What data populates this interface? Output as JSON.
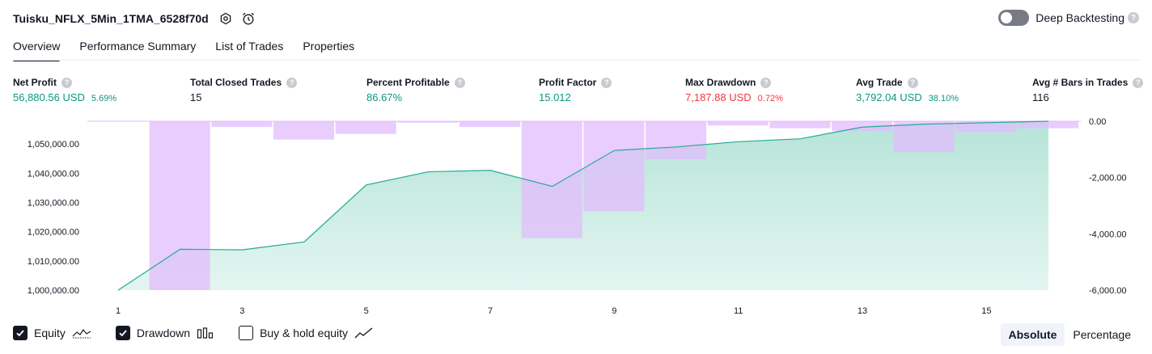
{
  "header": {
    "title": "Tuisku_NFLX_5Min_1TMA_6528f70d",
    "deep_backtesting_label": "Deep Backtesting"
  },
  "tabs": [
    {
      "label": "Overview"
    },
    {
      "label": "Performance Summary"
    },
    {
      "label": "List of Trades"
    },
    {
      "label": "Properties"
    }
  ],
  "metrics": [
    {
      "label": "Net Profit",
      "value": "56,880.56 USD",
      "pct": "5.69%"
    },
    {
      "label": "Total Closed Trades",
      "value": "15"
    },
    {
      "label": "Percent Profitable",
      "value": "86.67%"
    },
    {
      "label": "Profit Factor",
      "value": "15.012"
    },
    {
      "label": "Max Drawdown",
      "value": "7,187.88 USD",
      "pct": "0.72%"
    },
    {
      "label": "Avg Trade",
      "value": "3,792.04 USD",
      "pct": "38.10%"
    },
    {
      "label": "Avg # Bars in Trades",
      "value": "116"
    }
  ],
  "colors": {
    "equity_line": "#22ab94",
    "equity_fill": "#b2e3d6",
    "drawdown_bar": "#e1bcfc",
    "positive": "#089981",
    "negative": "#f23645"
  },
  "chart_data": {
    "type": "area",
    "x": [
      1,
      2,
      3,
      4,
      5,
      6,
      7,
      8,
      9,
      10,
      11,
      12,
      13,
      14,
      15,
      16
    ],
    "x_ticks": [
      "1",
      "3",
      "5",
      "7",
      "9",
      "11",
      "13",
      "15"
    ],
    "series": [
      {
        "name": "Equity",
        "axis": "left",
        "values": [
          1000000,
          1014000,
          1013800,
          1016500,
          1036000,
          1040500,
          1041000,
          1035500,
          1047800,
          1049000,
          1050800,
          1051800,
          1055800,
          1056800,
          1057300,
          1057800
        ]
      },
      {
        "name": "Drawdown",
        "axis": "right",
        "type": "bar",
        "values": [
          0,
          -6000,
          -200,
          -650,
          -450,
          -50,
          -200,
          -4150,
          -3200,
          -1350,
          -150,
          -250,
          -350,
          -1100,
          -400,
          -250
        ]
      }
    ],
    "left_axis": {
      "ticks": [
        "1,000,000.00",
        "1,010,000.00",
        "1,020,000.00",
        "1,030,000.00",
        "1,040,000.00",
        "1,050,000.00"
      ],
      "range": [
        1000000,
        1057800
      ]
    },
    "right_axis": {
      "ticks": [
        "0.00",
        "-2,000.00",
        "-4,000.00",
        "-6,000.00"
      ],
      "range": [
        -6000,
        0
      ]
    }
  },
  "legend": {
    "equity_label": "Equity",
    "drawdown_label": "Drawdown",
    "buyhold_label": "Buy & hold equity"
  },
  "mode": {
    "absolute_label": "Absolute",
    "percentage_label": "Percentage"
  }
}
